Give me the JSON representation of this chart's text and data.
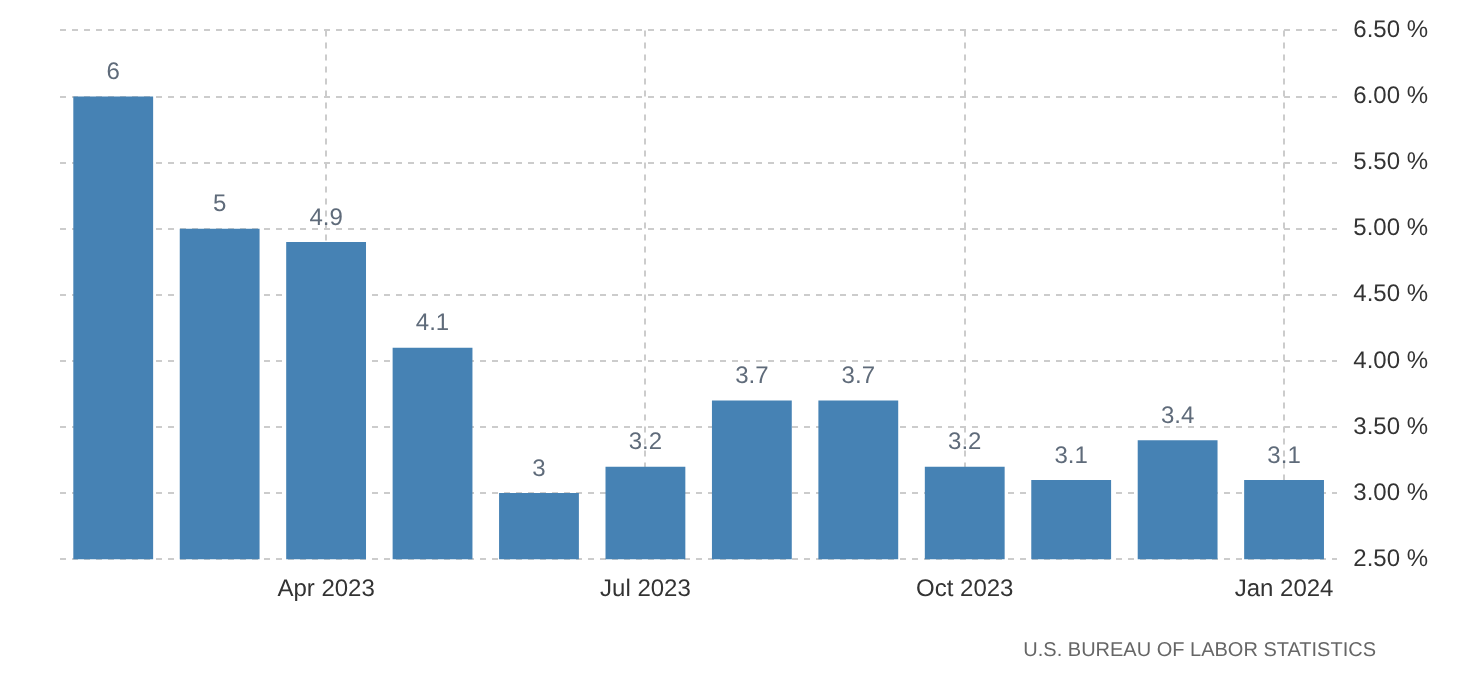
{
  "chart_data": {
    "type": "bar",
    "categories": [
      null,
      null,
      "Apr 2023",
      null,
      null,
      "Jul 2023",
      null,
      null,
      "Oct 2023",
      null,
      null,
      "Jan 2024"
    ],
    "values": [
      6,
      5,
      4.9,
      4.1,
      3,
      3.2,
      3.7,
      3.7,
      3.2,
      3.1,
      3.4,
      3.1
    ],
    "color": "#4682b4",
    "ylim": [
      2.5,
      6.5
    ],
    "yticks": [
      {
        "value": 2.5,
        "label": "2.50 %"
      },
      {
        "value": 3,
        "label": "3.00 %"
      },
      {
        "value": 3.5,
        "label": "3.50 %"
      },
      {
        "value": 4,
        "label": "4.00 %"
      },
      {
        "value": 4.5,
        "label": "4.50 %"
      },
      {
        "value": 5,
        "label": "5.00 %"
      },
      {
        "value": 5.5,
        "label": "5.50 %"
      },
      {
        "value": 6,
        "label": "6.00 %"
      },
      {
        "value": 6.5,
        "label": "6.50 %"
      }
    ],
    "grid": true,
    "data_labels": true,
    "annotations": [
      "U.S. BUREAU OF LABOR STATISTICS"
    ]
  }
}
